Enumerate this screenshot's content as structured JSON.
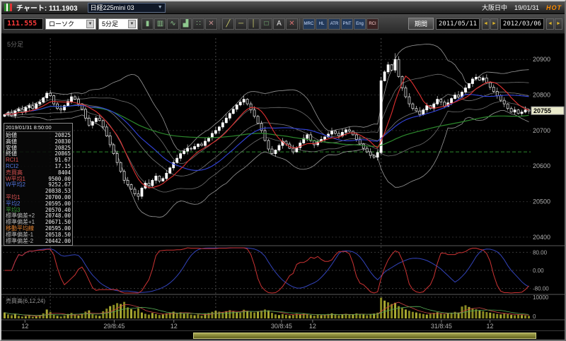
{
  "window": {
    "title": "チャート: 111.1903",
    "symbol": "日経225mini 03",
    "session": "大阪日中",
    "date": "19/01/31",
    "hot": "HOT"
  },
  "icons": {
    "chevron_down": "▼",
    "arrow_left": "◄",
    "arrow_right": "►"
  },
  "toolbar": {
    "price": "111.555",
    "chart_type": "ローソク",
    "timeframe": "5分足",
    "period_label": "期間",
    "date_from": "2011/05/11",
    "date_to": "2012/03/06",
    "icon_groups": [
      [
        {
          "name": "candlestick-icon",
          "glyph": "▮",
          "color": "#8ec88e"
        },
        {
          "name": "bar-chart-icon",
          "glyph": "▥",
          "color": "#8ec88e"
        },
        {
          "name": "line-chart-icon",
          "glyph": "∿",
          "color": "#8ec88e"
        },
        {
          "name": "area-chart-icon",
          "glyph": "▟",
          "color": "#8ec88e"
        },
        {
          "name": "dot-chart-icon",
          "glyph": "∷",
          "color": "#8ec88e"
        },
        {
          "name": "point-figure-icon",
          "glyph": "✕",
          "color": "#c88e8e"
        }
      ],
      [
        {
          "name": "trendline-tool-icon",
          "glyph": "╱",
          "color": "#d8d870"
        },
        {
          "name": "hline-tool-icon",
          "glyph": "─",
          "color": "#d8d870"
        },
        {
          "name": "vline-tool-icon",
          "glyph": "│",
          "color": "#d8d870"
        },
        {
          "name": "rect-tool-icon",
          "glyph": "□",
          "color": "#7ec87e"
        },
        {
          "name": "text-tool-icon",
          "glyph": "A",
          "color": "#e0e0e0"
        },
        {
          "name": "erase-tool-icon",
          "glyph": "✕",
          "color": "#d87070"
        }
      ],
      [
        {
          "name": "indicator-mrc-button",
          "glyph": "MRC",
          "color": "#cfe0ff",
          "bg": "#22395a"
        },
        {
          "name": "indicator-hl-button",
          "glyph": "HL",
          "color": "#cfe0ff",
          "bg": "#22395a"
        },
        {
          "name": "indicator-atr-button",
          "glyph": "ATR",
          "color": "#cfe0ff",
          "bg": "#22395a"
        },
        {
          "name": "indicator-pnt-button",
          "glyph": "PNT",
          "color": "#cfe0ff",
          "bg": "#22395a"
        },
        {
          "name": "indicator-eng-button",
          "glyph": "Eng",
          "color": "#cfe0ff",
          "bg": "#22395a"
        },
        {
          "name": "indicator-rci-button",
          "glyph": "RCI",
          "color": "#ffd0d0",
          "bg": "#3a2222"
        }
      ]
    ]
  },
  "tooltip": {
    "timestamp": "2019/01/31 8:50:00",
    "rows": [
      {
        "label": "始値",
        "value": "20825",
        "color": "#e8e8e8"
      },
      {
        "label": "高値",
        "value": "20830",
        "color": "#e8e8e8"
      },
      {
        "label": "安値",
        "value": "20825",
        "color": "#e8e8e8"
      },
      {
        "label": "終値",
        "value": "20865",
        "color": "#e8e8e8"
      },
      {
        "label": "RCI1",
        "value": "91.67",
        "color": "#e05555"
      },
      {
        "label": "RCI2",
        "value": "17.15",
        "color": "#5577e0"
      },
      {
        "label": "売買高",
        "value": "8404",
        "color": "#e05555"
      },
      {
        "label": "W平均1",
        "value": "9500.00",
        "color": "#e05555"
      },
      {
        "label": "W平均2",
        "value": "9252.67",
        "color": "#5577e0"
      },
      {
        "label": "",
        "value": "20838.53",
        "color": "#e8e8e8"
      },
      {
        "label": "平均1",
        "value": "20700.00",
        "color": "#e05555"
      },
      {
        "label": "平均2",
        "value": "20595.00",
        "color": "#5577e0"
      },
      {
        "label": "平均3",
        "value": "20570.40",
        "color": "#3aa03a"
      },
      {
        "label": "標準偏差+2",
        "value": "20748.00",
        "color": "#bbbbbb"
      },
      {
        "label": "標準偏差+1",
        "value": "20671.50",
        "color": "#bbbbbb"
      },
      {
        "label": "移動平均線",
        "value": "20595.00",
        "color": "#e08030"
      },
      {
        "label": "標準偏差-1",
        "value": "20518.50",
        "color": "#bbbbbb"
      },
      {
        "label": "標準偏差-2",
        "value": "20442.00",
        "color": "#bbbbbb"
      }
    ]
  },
  "chart_data": {
    "type": "candlestick",
    "instrument": "日経225mini 03",
    "timeframe_label": "5分足",
    "volume_label": "売買高(6,12,24)",
    "price_axis": [
      20900,
      20800,
      20700,
      20600,
      20500,
      20400
    ],
    "current_price": 20755,
    "reference_line": 20640,
    "session_break_indices": [
      13,
      60,
      107
    ],
    "rci_axis": [
      "80.00",
      "0.00",
      "-80.00"
    ],
    "volume_axis": [
      "10000",
      "0"
    ],
    "time_axis": [
      {
        "label": "12",
        "pos": 0.042
      },
      {
        "label": "29/8:45",
        "pos": 0.211
      },
      {
        "label": "12",
        "pos": 0.324
      },
      {
        "label": "30/8:45",
        "pos": 0.528
      },
      {
        "label": "12",
        "pos": 0.587
      },
      {
        "label": "31/8:45",
        "pos": 0.831
      },
      {
        "label": "12",
        "pos": 0.923
      }
    ],
    "indicators": {
      "ma_fast": 8,
      "ma_mid": 25,
      "ma_slow": 75,
      "bollinger_window": 20,
      "rci_short": 9,
      "rci_long": 22
    },
    "colors": {
      "up": "#ffffff",
      "down": "#dcdcdc",
      "wick": "#d8d8d8",
      "ma_fast": "#e03030",
      "ma_mid": "#3344dd",
      "ma_slow": "#2d8a2d",
      "bollinger": "#8a8a8a",
      "reference": "#2d8a2d",
      "rci_short": "#cc3333",
      "rci_long": "#3344bb",
      "volume": "#8a8a22",
      "vol_ma1": "#cc4444",
      "vol_ma2": "#55aa55"
    },
    "closes": [
      20745,
      20750,
      20742,
      20755,
      20760,
      20752,
      20765,
      20770,
      20762,
      20775,
      20780,
      20792,
      20805,
      20798,
      20775,
      20762,
      20758,
      20770,
      20782,
      20795,
      20788,
      20775,
      20760,
      20735,
      20715,
      20725,
      20735,
      20728,
      20710,
      20685,
      20660,
      20635,
      20610,
      20585,
      20560,
      20548,
      20535,
      20522,
      20515,
      20538,
      20552,
      20545,
      20560,
      20572,
      20558,
      20565,
      20580,
      20595,
      20610,
      20622,
      20635,
      20642,
      20650,
      20648,
      20655,
      20662,
      20658,
      20670,
      20680,
      20692,
      20700,
      20710,
      20722,
      20735,
      20748,
      20760,
      20772,
      20780,
      20788,
      20775,
      20758,
      20740,
      20720,
      20700,
      20672,
      20648,
      20635,
      20645,
      20658,
      20670,
      20662,
      20650,
      20640,
      20652,
      20665,
      20678,
      20688,
      20672,
      20660,
      20668,
      20675,
      20682,
      20690,
      20698,
      20692,
      20685,
      20695,
      20702,
      20698,
      20688,
      20675,
      20662,
      20650,
      20640,
      20630,
      20625,
      20638,
      20840,
      20865,
      20885,
      20870,
      20900,
      20852,
      20820,
      20795,
      20775,
      20762,
      20755,
      20745,
      20758,
      20770,
      20762,
      20775,
      20788,
      20780,
      20768,
      20778,
      20790,
      20800,
      20795,
      20808,
      20820,
      20832,
      20845,
      20850,
      20842,
      20848,
      20835,
      20822,
      20810,
      20798,
      20785,
      20775,
      20762,
      20752,
      20758,
      20748,
      20752,
      20758,
      20755
    ],
    "volumes": [
      2800,
      1900,
      1500,
      2200,
      1200,
      900,
      1100,
      1400,
      800,
      1000,
      1600,
      2400,
      4200,
      3100,
      1800,
      1200,
      900,
      1300,
      2100,
      2600,
      1900,
      1400,
      2300,
      3200,
      3800,
      2100,
      1500,
      1200,
      3400,
      4600,
      5800,
      6400,
      7200,
      6800,
      7800,
      5200,
      4400,
      3600,
      4800,
      2800,
      2200,
      1800,
      2600,
      2100,
      1600,
      1900,
      2400,
      2800,
      3200,
      2600,
      2900,
      2200,
      2500,
      1800,
      1500,
      1900,
      1300,
      2100,
      2600,
      3100,
      3600,
      3200,
      2800,
      3400,
      3900,
      3500,
      3000,
      2700,
      4100,
      3600,
      3100,
      2800,
      3300,
      3700,
      4200,
      3800,
      2600,
      1900,
      1600,
      2100,
      1700,
      1400,
      1800,
      2200,
      1900,
      2400,
      2000,
      1600,
      1300,
      1700,
      1500,
      1800,
      2100,
      2400,
      1900,
      1500,
      1800,
      2200,
      1700,
      2000,
      2400,
      2100,
      1800,
      1500,
      1900,
      2300,
      2700,
      9800,
      8404,
      7600,
      6800,
      7400,
      5800,
      4900,
      4200,
      3600,
      3100,
      2800,
      2400,
      2100,
      1800,
      2200,
      2600,
      2900,
      2400,
      2000,
      2300,
      2700,
      3100,
      2800,
      5600,
      6200,
      5400,
      4800,
      4300,
      3800,
      3400,
      3000,
      2700,
      2400,
      2100,
      1900,
      2300,
      2000,
      1700,
      1500,
      1800,
      1600,
      1400,
      1200
    ]
  }
}
